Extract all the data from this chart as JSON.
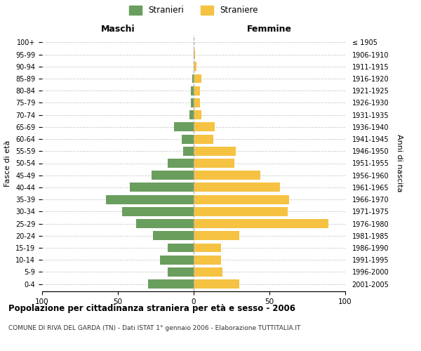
{
  "age_groups": [
    "0-4",
    "5-9",
    "10-14",
    "15-19",
    "20-24",
    "25-29",
    "30-34",
    "35-39",
    "40-44",
    "45-49",
    "50-54",
    "55-59",
    "60-64",
    "65-69",
    "70-74",
    "75-79",
    "80-84",
    "85-89",
    "90-94",
    "95-99",
    "100+"
  ],
  "birth_years": [
    "2001-2005",
    "1996-2000",
    "1991-1995",
    "1986-1990",
    "1981-1985",
    "1976-1980",
    "1971-1975",
    "1966-1970",
    "1961-1965",
    "1956-1960",
    "1951-1955",
    "1946-1950",
    "1941-1945",
    "1936-1940",
    "1931-1935",
    "1926-1930",
    "1921-1925",
    "1916-1920",
    "1911-1915",
    "1906-1910",
    "≤ 1905"
  ],
  "maschi": [
    30,
    17,
    22,
    17,
    27,
    38,
    47,
    58,
    42,
    28,
    17,
    7,
    8,
    13,
    3,
    2,
    2,
    1,
    0,
    0,
    0
  ],
  "femmine": [
    30,
    19,
    18,
    18,
    30,
    89,
    62,
    63,
    57,
    44,
    27,
    28,
    13,
    14,
    5,
    4,
    4,
    5,
    2,
    1,
    0
  ],
  "color_maschi": "#6a9e5e",
  "color_femmine": "#f5c242",
  "background_color": "#ffffff",
  "grid_color": "#cccccc",
  "title": "Popolazione per cittadinanza straniera per età e sesso - 2006",
  "subtitle": "COMUNE DI RIVA DEL GARDA (TN) - Dati ISTAT 1° gennaio 2006 - Elaborazione TUTTITALIA.IT",
  "xlabel_left": "Maschi",
  "xlabel_right": "Femmine",
  "ylabel_left": "Fasce di età",
  "ylabel_right": "Anni di nascita",
  "legend_maschi": "Stranieri",
  "legend_femmine": "Straniere",
  "xlim": 100
}
